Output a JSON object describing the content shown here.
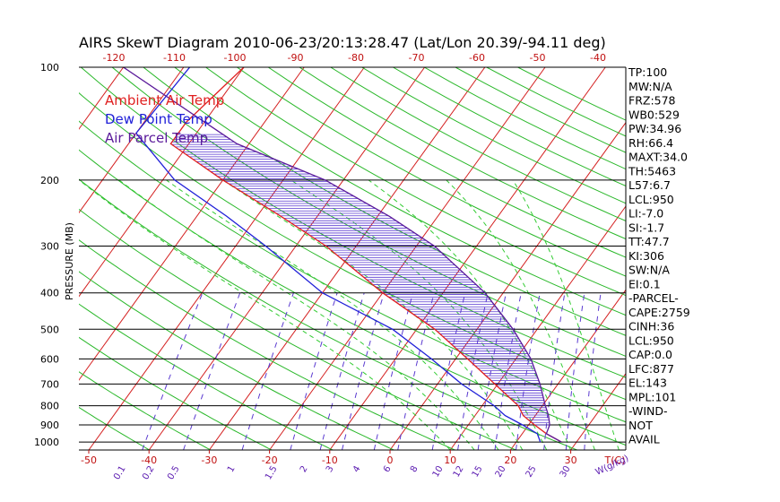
{
  "chart_data": {
    "type": "line",
    "title": "AIRS SkewT Diagram 2010-06-23/20:13:28.47 (Lat/Lon 20.39/-94.11 deg)",
    "ylabel": "PRESSURE (MB)",
    "x_unit_label": "T(C)",
    "mixing_ratio_unit_label": "W(g/kg)",
    "y_scale": "log",
    "ylim": [
      1050,
      100
    ],
    "xlim_bottom": [
      -50,
      40
    ],
    "pressure_ticks": [
      "100",
      "200",
      "300",
      "400",
      "500",
      "600",
      "700",
      "800",
      "900",
      "1000"
    ],
    "pressure_values": [
      100,
      200,
      300,
      400,
      500,
      600,
      700,
      800,
      900,
      1000
    ],
    "bottom_temp_ticks": [
      "-50",
      "-40",
      "-30",
      "-20",
      "-10",
      "0",
      "10",
      "20",
      "30"
    ],
    "bottom_temp_values": [
      -50,
      -40,
      -30,
      -20,
      -10,
      0,
      10,
      20,
      30
    ],
    "top_temp_ticks": [
      "-120",
      "-110",
      "-100",
      "-90",
      "-80",
      "-70",
      "-60",
      "-50",
      "-40"
    ],
    "top_temp_values": [
      -120,
      -110,
      -100,
      -90,
      -80,
      -70,
      -60,
      -50,
      -40
    ],
    "mixing_ratio_labels": [
      "0.1",
      "0.2",
      "0.5",
      "1",
      "1.5",
      "2",
      "3",
      "4",
      "6",
      "8",
      "10",
      "12",
      "15",
      "20",
      "25",
      "30"
    ],
    "mixing_ratio_values": [
      0.1,
      0.2,
      0.5,
      1,
      1.5,
      2,
      3,
      4,
      6,
      8,
      10,
      12,
      15,
      20,
      25,
      30
    ],
    "legend": {
      "placement": "top-left",
      "items": [
        {
          "label": "Ambient Air Temp",
          "color": "#e02020"
        },
        {
          "label": "Dew Point Temp",
          "color": "#2020d8"
        },
        {
          "label": "Air Parcel Temp",
          "color": "#5a1a9a"
        }
      ]
    },
    "series": [
      {
        "name": "Ambient Air Temp",
        "color": "#e02020",
        "points": [
          [
            1000,
            27.5
          ],
          [
            950,
            24
          ],
          [
            900,
            21
          ],
          [
            850,
            18
          ],
          [
            800,
            16
          ],
          [
            700,
            9.5
          ],
          [
            600,
            2
          ],
          [
            500,
            -7
          ],
          [
            400,
            -20
          ],
          [
            300,
            -35
          ],
          [
            250,
            -46
          ],
          [
            200,
            -60
          ],
          [
            160,
            -73
          ],
          [
            140,
            -73
          ],
          [
            100,
            -70
          ]
        ]
      },
      {
        "name": "Dew Point Temp",
        "color": "#2020d8",
        "points": [
          [
            1000,
            24
          ],
          [
            950,
            22.5
          ],
          [
            900,
            19
          ],
          [
            850,
            15
          ],
          [
            800,
            12
          ],
          [
            700,
            4
          ],
          [
            600,
            -4
          ],
          [
            500,
            -14
          ],
          [
            400,
            -30
          ],
          [
            300,
            -45
          ],
          [
            250,
            -55
          ],
          [
            200,
            -68
          ],
          [
            150,
            -80
          ],
          [
            100,
            -79
          ]
        ]
      },
      {
        "name": "Air Parcel Temp",
        "color": "#5a1a9a",
        "points": [
          [
            1000,
            27.5
          ],
          [
            950,
            24
          ],
          [
            900,
            23.5
          ],
          [
            850,
            22.2
          ],
          [
            800,
            20.5
          ],
          [
            700,
            17
          ],
          [
            600,
            12.5
          ],
          [
            500,
            6
          ],
          [
            400,
            -3
          ],
          [
            300,
            -17
          ],
          [
            250,
            -28
          ],
          [
            200,
            -43
          ],
          [
            160,
            -62
          ],
          [
            140,
            -70
          ],
          [
            100,
            -90
          ]
        ]
      }
    ],
    "hatched_region": "between Air Parcel Temp and Ambient Air Temp",
    "colors": {
      "isotherm": "#d42020",
      "dry_adiabat": "#2ab82a",
      "moist_adiabat": "#33cc33",
      "mixing_ratio": "#5a3ad0",
      "axis": "#000000"
    },
    "indices": [
      "TP:100",
      "MW:N/A",
      "FRZ:578",
      "WB0:529",
      "PW:34.96",
      "RH:66.4",
      "MAXT:34.0",
      "TH:5463",
      "L57:6.7",
      "LCL:950",
      "LI:-7.0",
      "SI:-1.7",
      "TT:47.7",
      "KI:306",
      "SW:N/A",
      "EI:0.1",
      "-PARCEL-",
      "CAPE:2759",
      "CINH:36",
      "LCL:950",
      "CAP:0.0",
      "LFC:877",
      "EL:143",
      "MPL:101",
      "-WIND-",
      "NOT",
      "AVAIL"
    ]
  }
}
